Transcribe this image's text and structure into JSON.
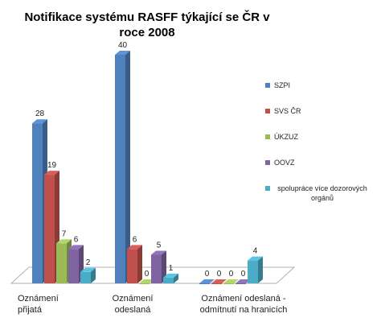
{
  "chart_data": {
    "type": "bar",
    "title": "Notifikace systému RASFF týkající se ČR v roce 2008",
    "categories": [
      "Oznámení přijatá",
      "Oznámení odeslaná",
      "Oznámení odeslaná - odmítnutí na hranicích"
    ],
    "series": [
      {
        "name": "SZPI",
        "color": "#4f81bd",
        "values": [
          28,
          40,
          0
        ]
      },
      {
        "name": "SVS ČR",
        "color": "#c0504d",
        "values": [
          19,
          6,
          0
        ]
      },
      {
        "name": "ÚKZUZ",
        "color": "#9bbb59",
        "values": [
          7,
          0,
          0
        ]
      },
      {
        "name": "OOVZ",
        "color": "#8064a2",
        "values": [
          6,
          5,
          0
        ]
      },
      {
        "name": "spolupráce více dozorových orgánů",
        "color": "#4bacc6",
        "values": [
          2,
          1,
          4
        ]
      }
    ],
    "ylim": [
      0,
      40
    ],
    "legend_position": "right",
    "grid": false
  }
}
